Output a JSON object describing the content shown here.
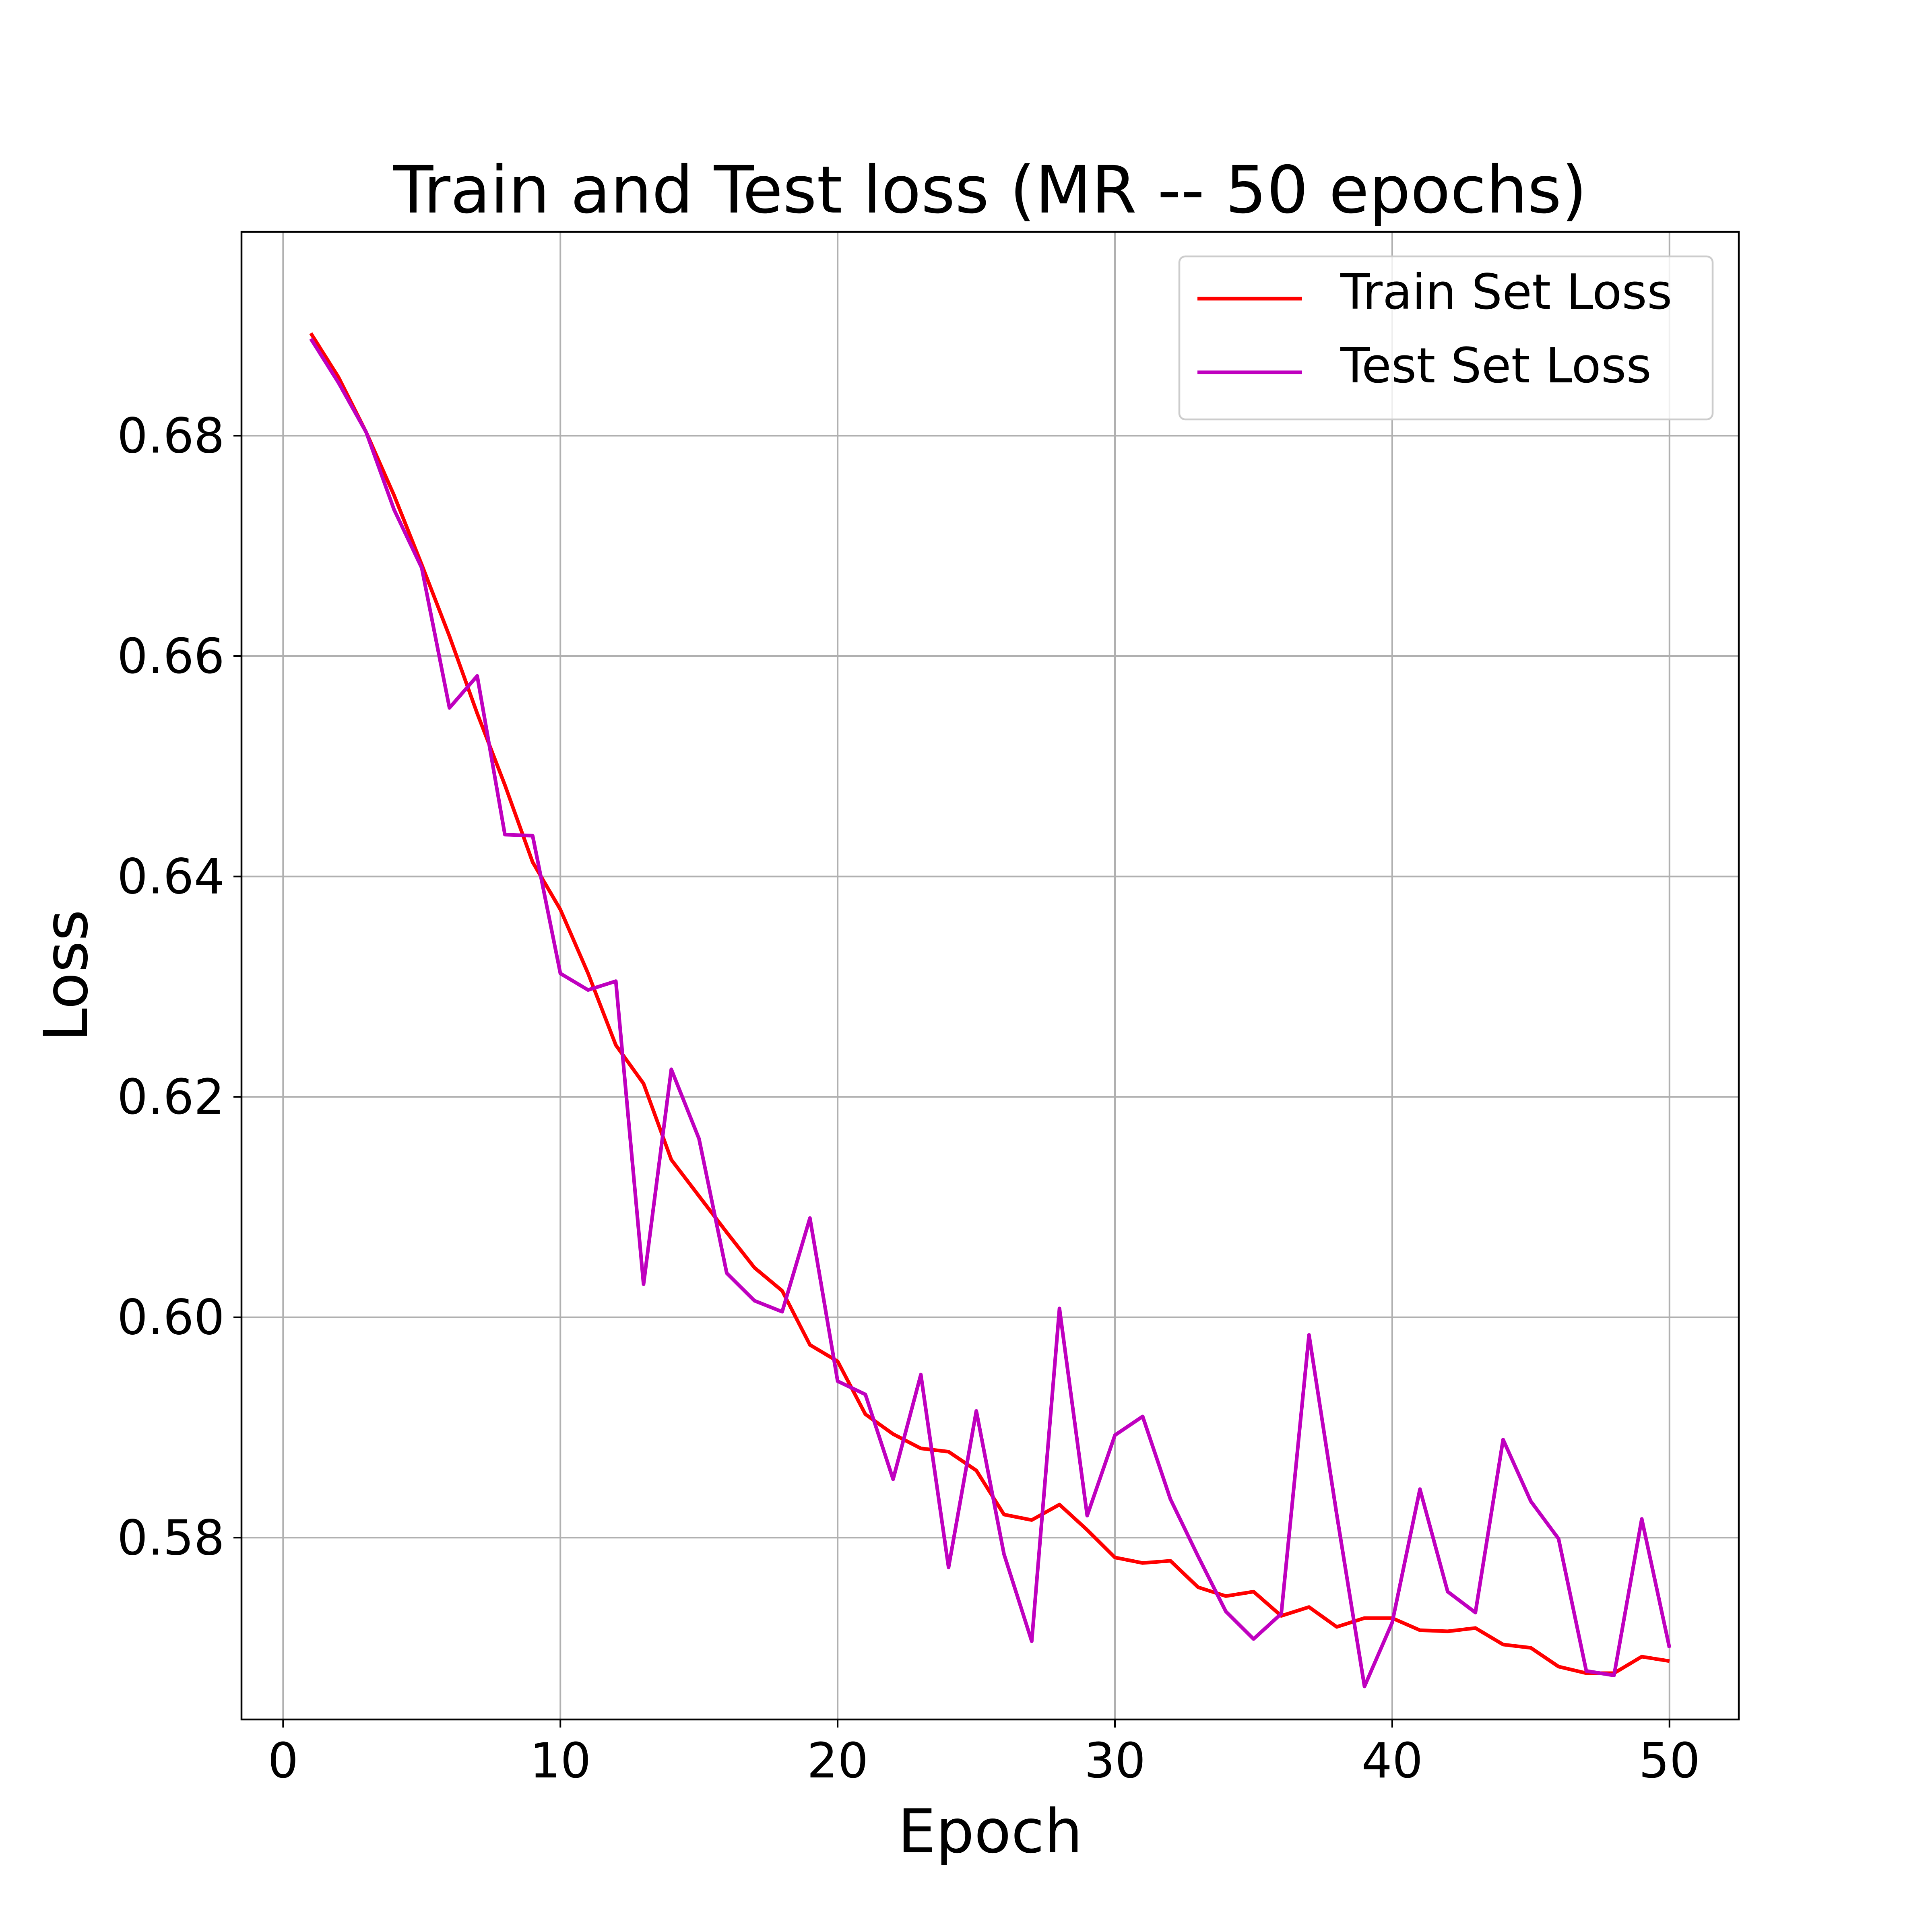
{
  "chart_data": {
    "type": "line",
    "title": "Train and Test loss (MR -- 50 epochs)",
    "xlabel": "Epoch",
    "ylabel": "Loss",
    "xlim": [
      -1.5,
      52.5
    ],
    "ylim": [
      0.5635,
      0.6985
    ],
    "xticks": [
      0,
      10,
      20,
      30,
      40,
      50
    ],
    "xtick_labels": [
      "0",
      "10",
      "20",
      "30",
      "40",
      "50"
    ],
    "yticks": [
      0.58,
      0.6,
      0.62,
      0.64,
      0.66,
      0.68
    ],
    "ytick_labels": [
      "0.58",
      "0.60",
      "0.62",
      "0.64",
      "0.66",
      "0.68"
    ],
    "grid": true,
    "legend_position": "top-right",
    "x": [
      1,
      2,
      3,
      4,
      5,
      6,
      7,
      8,
      9,
      10,
      11,
      12,
      13,
      14,
      15,
      16,
      17,
      18,
      19,
      20,
      21,
      22,
      23,
      24,
      25,
      26,
      27,
      28,
      29,
      30,
      31,
      32,
      33,
      34,
      35,
      36,
      37,
      38,
      39,
      40,
      41,
      42,
      43,
      44,
      45,
      46,
      47,
      48,
      49,
      50
    ],
    "series": [
      {
        "name": "Train Set Loss",
        "color": "#ff0000",
        "values": [
          0.6893,
          0.6853,
          0.6803,
          0.6746,
          0.6683,
          0.6618,
          0.6548,
          0.6483,
          0.6413,
          0.637,
          0.6312,
          0.6247,
          0.6212,
          0.6143,
          0.611,
          0.6077,
          0.6045,
          0.6024,
          0.5975,
          0.596,
          0.5912,
          0.5894,
          0.5881,
          0.5878,
          0.5861,
          0.5821,
          0.5816,
          0.583,
          0.5807,
          0.5782,
          0.5777,
          0.5779,
          0.5755,
          0.5747,
          0.5751,
          0.5729,
          0.5737,
          0.5719,
          0.5727,
          0.5727,
          0.5716,
          0.5715,
          0.5718,
          0.5703,
          0.57,
          0.5683,
          0.5677,
          0.5677,
          0.5692,
          0.5688
        ]
      },
      {
        "name": "Test Set Loss",
        "color": "#bf00bf",
        "values": [
          0.6888,
          0.6848,
          0.6803,
          0.6733,
          0.668,
          0.6553,
          0.6582,
          0.6438,
          0.6437,
          0.6312,
          0.6297,
          0.6305,
          0.603,
          0.6225,
          0.6162,
          0.604,
          0.6015,
          0.6005,
          0.609,
          0.5942,
          0.593,
          0.5853,
          0.5948,
          0.5773,
          0.5915,
          0.5785,
          0.5706,
          0.6008,
          0.582,
          0.5893,
          0.591,
          0.5835,
          0.5783,
          0.5733,
          0.5708,
          0.5731,
          0.5984,
          0.5821,
          0.5665,
          0.5723,
          0.5844,
          0.5751,
          0.5732,
          0.5889,
          0.5833,
          0.5799,
          0.5679,
          0.5675,
          0.5817,
          0.57
        ]
      }
    ]
  }
}
